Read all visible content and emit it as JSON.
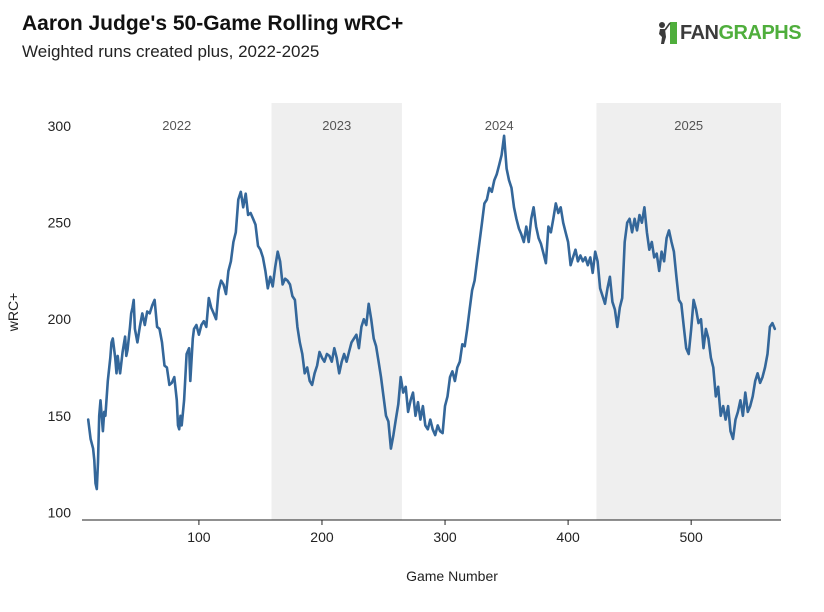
{
  "header": {
    "title": "Aaron Judge's 50-Game Rolling wRC+",
    "subtitle": "Weighted runs created plus, 2022-2025"
  },
  "logo": {
    "fan": "FAN",
    "graphs": "GRAPHS",
    "icon": "batter-silhouette-icon"
  },
  "colors": {
    "line": "#34679a",
    "band": "#efefef",
    "axis": "#222222",
    "logo_green": "#4fae3c"
  },
  "chart_data": {
    "type": "line",
    "title": "Aaron Judge's 50-Game Rolling wRC+",
    "subtitle": "Weighted runs created plus, 2022-2025",
    "xlabel": "Game Number",
    "ylabel": "wRC+",
    "xlim": [
      5,
      573
    ],
    "ylim": [
      96,
      312
    ],
    "xticks": [
      100,
      200,
      300,
      400,
      500
    ],
    "yticks": [
      100,
      150,
      200,
      250,
      300
    ],
    "seasons": [
      {
        "label": "2022",
        "start": 5,
        "end": 159,
        "shaded": false
      },
      {
        "label": "2023",
        "start": 159,
        "end": 265,
        "shaded": true
      },
      {
        "label": "2024",
        "start": 265,
        "end": 423,
        "shaded": false
      },
      {
        "label": "2025",
        "start": 423,
        "end": 573,
        "shaded": true
      }
    ],
    "series": [
      {
        "name": "wRC+",
        "points": [
          [
            10,
            148
          ],
          [
            12,
            138
          ],
          [
            14,
            133
          ],
          [
            15,
            127
          ],
          [
            16,
            115
          ],
          [
            17,
            112
          ],
          [
            18,
            126
          ],
          [
            19,
            150
          ],
          [
            20,
            158
          ],
          [
            21,
            150
          ],
          [
            22,
            142
          ],
          [
            23,
            152
          ],
          [
            24,
            150
          ],
          [
            26,
            168
          ],
          [
            28,
            180
          ],
          [
            29,
            188
          ],
          [
            30,
            190
          ],
          [
            32,
            180
          ],
          [
            33,
            172
          ],
          [
            34,
            181
          ],
          [
            35,
            176
          ],
          [
            36,
            172
          ],
          [
            38,
            183
          ],
          [
            40,
            191
          ],
          [
            41,
            181
          ],
          [
            42,
            184
          ],
          [
            44,
            196
          ],
          [
            45,
            203
          ],
          [
            46,
            206
          ],
          [
            47,
            210
          ],
          [
            48,
            195
          ],
          [
            50,
            188
          ],
          [
            52,
            196
          ],
          [
            54,
            203
          ],
          [
            56,
            197
          ],
          [
            58,
            204
          ],
          [
            60,
            203
          ],
          [
            62,
            207
          ],
          [
            64,
            210
          ],
          [
            66,
            196
          ],
          [
            68,
            195
          ],
          [
            70,
            188
          ],
          [
            72,
            176
          ],
          [
            74,
            175
          ],
          [
            76,
            166
          ],
          [
            78,
            167
          ],
          [
            80,
            170
          ],
          [
            82,
            158
          ],
          [
            83,
            145
          ],
          [
            84,
            143
          ],
          [
            85,
            150
          ],
          [
            86,
            145
          ],
          [
            88,
            158
          ],
          [
            90,
            182
          ],
          [
            92,
            185
          ],
          [
            93,
            168
          ],
          [
            95,
            190
          ],
          [
            96,
            195
          ],
          [
            98,
            197
          ],
          [
            100,
            192
          ],
          [
            102,
            197
          ],
          [
            104,
            199
          ],
          [
            106,
            196
          ],
          [
            108,
            211
          ],
          [
            110,
            206
          ],
          [
            112,
            203
          ],
          [
            114,
            200
          ],
          [
            116,
            215
          ],
          [
            118,
            220
          ],
          [
            120,
            218
          ],
          [
            122,
            213
          ],
          [
            124,
            225
          ],
          [
            126,
            230
          ],
          [
            128,
            240
          ],
          [
            130,
            245
          ],
          [
            132,
            262
          ],
          [
            134,
            266
          ],
          [
            136,
            258
          ],
          [
            138,
            265
          ],
          [
            140,
            254
          ],
          [
            142,
            255
          ],
          [
            144,
            252
          ],
          [
            146,
            249
          ],
          [
            148,
            238
          ],
          [
            150,
            236
          ],
          [
            152,
            232
          ],
          [
            154,
            225
          ],
          [
            156,
            216
          ],
          [
            158,
            222
          ],
          [
            160,
            217
          ],
          [
            162,
            227
          ],
          [
            164,
            235
          ],
          [
            166,
            230
          ],
          [
            168,
            218
          ],
          [
            170,
            221
          ],
          [
            172,
            220
          ],
          [
            174,
            218
          ],
          [
            176,
            212
          ],
          [
            178,
            210
          ],
          [
            180,
            196
          ],
          [
            182,
            188
          ],
          [
            184,
            182
          ],
          [
            186,
            172
          ],
          [
            188,
            175
          ],
          [
            190,
            168
          ],
          [
            192,
            166
          ],
          [
            194,
            172
          ],
          [
            196,
            176
          ],
          [
            198,
            183
          ],
          [
            200,
            180
          ],
          [
            202,
            178
          ],
          [
            204,
            182
          ],
          [
            206,
            181
          ],
          [
            208,
            178
          ],
          [
            210,
            185
          ],
          [
            212,
            180
          ],
          [
            214,
            172
          ],
          [
            216,
            178
          ],
          [
            218,
            182
          ],
          [
            220,
            178
          ],
          [
            222,
            183
          ],
          [
            224,
            188
          ],
          [
            226,
            190
          ],
          [
            228,
            192
          ],
          [
            230,
            185
          ],
          [
            232,
            196
          ],
          [
            234,
            200
          ],
          [
            236,
            197
          ],
          [
            238,
            208
          ],
          [
            240,
            200
          ],
          [
            242,
            190
          ],
          [
            244,
            186
          ],
          [
            246,
            178
          ],
          [
            248,
            170
          ],
          [
            250,
            160
          ],
          [
            252,
            150
          ],
          [
            254,
            147
          ],
          [
            256,
            133
          ],
          [
            258,
            140
          ],
          [
            260,
            148
          ],
          [
            262,
            156
          ],
          [
            264,
            170
          ],
          [
            266,
            162
          ],
          [
            268,
            165
          ],
          [
            270,
            152
          ],
          [
            272,
            158
          ],
          [
            274,
            162
          ],
          [
            276,
            150
          ],
          [
            278,
            157
          ],
          [
            280,
            148
          ],
          [
            282,
            155
          ],
          [
            284,
            145
          ],
          [
            286,
            143
          ],
          [
            288,
            148
          ],
          [
            290,
            143
          ],
          [
            292,
            140
          ],
          [
            294,
            145
          ],
          [
            296,
            142
          ],
          [
            298,
            141
          ],
          [
            300,
            155
          ],
          [
            302,
            160
          ],
          [
            304,
            170
          ],
          [
            306,
            173
          ],
          [
            308,
            168
          ],
          [
            310,
            175
          ],
          [
            312,
            178
          ],
          [
            314,
            187
          ],
          [
            316,
            186
          ],
          [
            318,
            195
          ],
          [
            320,
            205
          ],
          [
            322,
            215
          ],
          [
            324,
            220
          ],
          [
            326,
            230
          ],
          [
            328,
            240
          ],
          [
            330,
            250
          ],
          [
            332,
            260
          ],
          [
            334,
            262
          ],
          [
            336,
            268
          ],
          [
            338,
            266
          ],
          [
            340,
            272
          ],
          [
            342,
            275
          ],
          [
            344,
            280
          ],
          [
            346,
            285
          ],
          [
            348,
            295
          ],
          [
            350,
            278
          ],
          [
            352,
            272
          ],
          [
            354,
            268
          ],
          [
            356,
            258
          ],
          [
            358,
            252
          ],
          [
            360,
            247
          ],
          [
            362,
            244
          ],
          [
            364,
            240
          ],
          [
            366,
            248
          ],
          [
            368,
            240
          ],
          [
            370,
            252
          ],
          [
            372,
            258
          ],
          [
            374,
            248
          ],
          [
            376,
            242
          ],
          [
            378,
            239
          ],
          [
            380,
            234
          ],
          [
            382,
            229
          ],
          [
            384,
            248
          ],
          [
            386,
            245
          ],
          [
            388,
            252
          ],
          [
            390,
            260
          ],
          [
            392,
            255
          ],
          [
            394,
            258
          ],
          [
            396,
            250
          ],
          [
            398,
            245
          ],
          [
            400,
            240
          ],
          [
            402,
            228
          ],
          [
            404,
            232
          ],
          [
            406,
            236
          ],
          [
            408,
            230
          ],
          [
            410,
            233
          ],
          [
            412,
            230
          ],
          [
            414,
            232
          ],
          [
            416,
            228
          ],
          [
            418,
            232
          ],
          [
            420,
            224
          ],
          [
            422,
            235
          ],
          [
            424,
            230
          ],
          [
            426,
            216
          ],
          [
            428,
            212
          ],
          [
            430,
            208
          ],
          [
            432,
            216
          ],
          [
            434,
            222
          ],
          [
            436,
            209
          ],
          [
            438,
            205
          ],
          [
            440,
            196
          ],
          [
            442,
            206
          ],
          [
            444,
            211
          ],
          [
            446,
            240
          ],
          [
            448,
            250
          ],
          [
            450,
            252
          ],
          [
            452,
            245
          ],
          [
            454,
            252
          ],
          [
            456,
            246
          ],
          [
            458,
            254
          ],
          [
            460,
            250
          ],
          [
            462,
            258
          ],
          [
            464,
            245
          ],
          [
            466,
            236
          ],
          [
            468,
            240
          ],
          [
            470,
            232
          ],
          [
            472,
            234
          ],
          [
            474,
            225
          ],
          [
            476,
            235
          ],
          [
            478,
            230
          ],
          [
            480,
            242
          ],
          [
            482,
            246
          ],
          [
            484,
            240
          ],
          [
            486,
            235
          ],
          [
            488,
            222
          ],
          [
            490,
            210
          ],
          [
            492,
            208
          ],
          [
            494,
            196
          ],
          [
            496,
            185
          ],
          [
            498,
            182
          ],
          [
            500,
            195
          ],
          [
            502,
            210
          ],
          [
            504,
            205
          ],
          [
            506,
            198
          ],
          [
            508,
            200
          ],
          [
            510,
            185
          ],
          [
            512,
            195
          ],
          [
            514,
            190
          ],
          [
            516,
            180
          ],
          [
            518,
            175
          ],
          [
            520,
            160
          ],
          [
            522,
            165
          ],
          [
            524,
            150
          ],
          [
            526,
            155
          ],
          [
            528,
            148
          ],
          [
            530,
            155
          ],
          [
            532,
            142
          ],
          [
            534,
            138
          ],
          [
            536,
            148
          ],
          [
            538,
            152
          ],
          [
            540,
            158
          ],
          [
            542,
            150
          ],
          [
            544,
            162
          ],
          [
            546,
            152
          ],
          [
            548,
            155
          ],
          [
            550,
            160
          ],
          [
            552,
            168
          ],
          [
            554,
            172
          ],
          [
            556,
            167
          ],
          [
            558,
            170
          ],
          [
            560,
            175
          ],
          [
            562,
            182
          ],
          [
            564,
            196
          ],
          [
            566,
            198
          ],
          [
            568,
            195
          ]
        ]
      }
    ]
  }
}
